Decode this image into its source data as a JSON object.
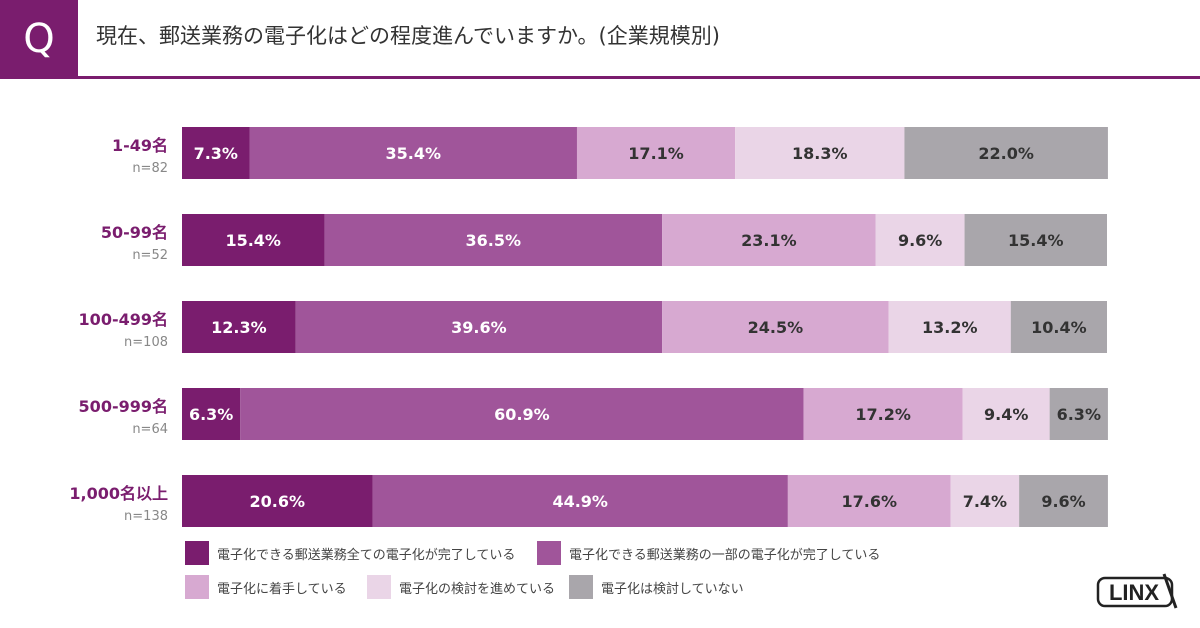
{
  "header": {
    "q_label": "Q",
    "title": "現在、郵送業務の電子化はどの程度進んでいますか。(企業規模別)"
  },
  "colors": {
    "accent": "#7a1d6e",
    "category_label": "#7a1d6e",
    "n_label": "#888888"
  },
  "chart_data": {
    "type": "bar",
    "orientation": "horizontal",
    "stacked": true,
    "percent": true,
    "categories": [
      "1-49名",
      "50-99名",
      "100-499名",
      "500-999名",
      "1,000名以上"
    ],
    "sample_sizes": [
      "n=82",
      "n=52",
      "n=108",
      "n=64",
      "n=138"
    ],
    "series": [
      {
        "name": "電子化できる郵送業務全ての電子化が完了している",
        "color": "#7a1d6e",
        "text_color": "#ffffff",
        "values": [
          7.3,
          15.4,
          12.3,
          6.3,
          20.6
        ]
      },
      {
        "name": "電子化できる郵送業務の一部の電子化が完了している",
        "color": "#a0559a",
        "text_color": "#ffffff",
        "values": [
          35.4,
          36.5,
          39.6,
          60.9,
          44.9
        ]
      },
      {
        "name": "電子化に着手している",
        "color": "#d7a9d1",
        "text_color": "#333333",
        "values": [
          17.1,
          23.1,
          24.5,
          17.2,
          17.6
        ]
      },
      {
        "name": "電子化の検討を進めている",
        "color": "#ead5e7",
        "text_color": "#333333",
        "values": [
          18.3,
          9.6,
          13.2,
          9.4,
          7.4
        ]
      },
      {
        "name": "電子化は検討していない",
        "color": "#a9a6ab",
        "text_color": "#333333",
        "values": [
          22.0,
          15.4,
          10.4,
          6.3,
          9.6
        ]
      }
    ],
    "value_labels": [
      [
        "7.3%",
        "35.4%",
        "17.1%",
        "18.3%",
        "22.0%"
      ],
      [
        "15.4%",
        "36.5%",
        "23.1%",
        "9.6%",
        "15.4%"
      ],
      [
        "12.3%",
        "39.6%",
        "24.5%",
        "13.2%",
        "10.4%"
      ],
      [
        "6.3%",
        "60.9%",
        "17.2%",
        "9.4%",
        "6.3%"
      ],
      [
        "20.6%",
        "44.9%",
        "17.6%",
        "7.4%",
        "9.6%"
      ]
    ],
    "xlim": [
      0,
      100
    ],
    "legend_position": "bottom"
  },
  "legend": {
    "items": [
      {
        "label": "電子化できる郵送業務全ての電子化が完了している",
        "color": "#7a1d6e"
      },
      {
        "label": "電子化できる郵送業務の一部の電子化が完了している",
        "color": "#a0559a"
      },
      {
        "label": "電子化に着手している",
        "color": "#d7a9d1"
      },
      {
        "label": "電子化の検討を進めている",
        "color": "#ead5e7"
      },
      {
        "label": "電子化は検討していない",
        "color": "#a9a6ab"
      }
    ]
  },
  "logo": {
    "text": "LINX"
  }
}
